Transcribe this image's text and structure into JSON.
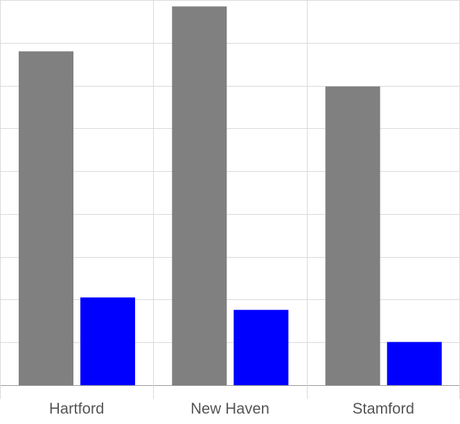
{
  "chart_data": {
    "type": "bar",
    "categories": [
      "Hartford",
      "New Haven",
      "Stamford"
    ],
    "series": [
      {
        "color": "#808080",
        "values": [
          7.8,
          8.85,
          6.98
        ]
      },
      {
        "color": "#0000ff",
        "values": [
          2.05,
          1.76,
          1.01
        ]
      }
    ],
    "ylim": [
      0,
      9
    ],
    "y_gridline_step": 1,
    "grid": true,
    "legend": "none",
    "title": "",
    "xlabel": "",
    "ylabel": ""
  }
}
